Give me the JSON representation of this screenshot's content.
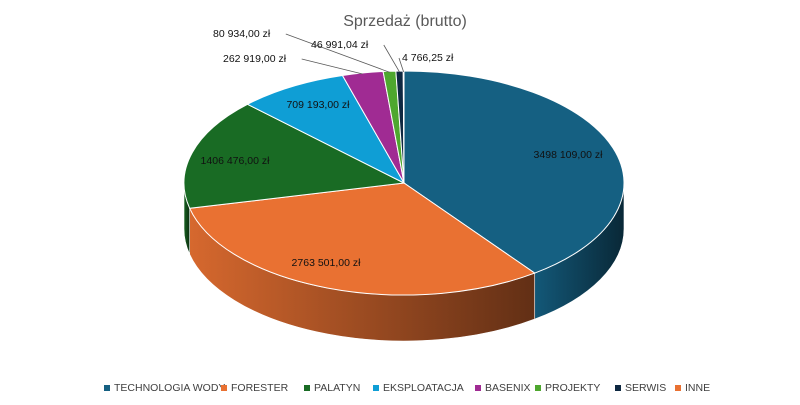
{
  "chart_data": {
    "type": "pie",
    "title": "Sprzedaż (brutto)",
    "categories": [
      "TECHNOLOGIA WODY",
      "FORESTER",
      "PALATYN",
      "EKSPLOATACJA",
      "BASENIX",
      "PROJEKTY",
      "SERWIS",
      "INNE"
    ],
    "values": [
      3498109.0,
      2763501.0,
      1406476.0,
      709193.0,
      262919.0,
      80934.0,
      46991.04,
      4766.25
    ],
    "labels": [
      "3498 109,00 zł",
      "2763 501,00 zł",
      "1406 476,00 zł",
      "709 193,00 zł",
      "262 919,00 zł",
      "80 934,00 zł",
      "46 991,04 zł",
      "4 766,25 zł"
    ],
    "colors": [
      "#156082",
      "#E97132",
      "#196B24",
      "#0F9ED5",
      "#A02B93",
      "#4EA72E",
      "#0E2841",
      "#E97132"
    ],
    "legend": "bottom",
    "style": "3d-pie"
  }
}
